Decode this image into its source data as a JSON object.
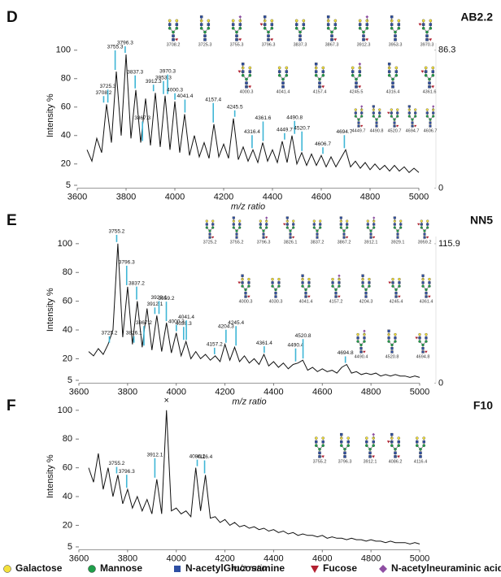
{
  "chart_data": [
    {
      "type": "line",
      "panel": "D",
      "sample": "AB2.2",
      "y_label": "Intensity %",
      "x_label": "m/z ratio",
      "color": "#111111",
      "peak_color": "#3fb6d6",
      "x": [
        3640,
        3660,
        3680,
        3700,
        3720,
        3740,
        3760,
        3780,
        3800,
        3820,
        3840,
        3860,
        3880,
        3900,
        3920,
        3940,
        3960,
        3980,
        4000,
        4020,
        4040,
        4060,
        4080,
        4100,
        4120,
        4140,
        4160,
        4180,
        4200,
        4220,
        4240,
        4260,
        4280,
        4300,
        4320,
        4340,
        4360,
        4380,
        4400,
        4420,
        4440,
        4460,
        4480,
        4500,
        4520,
        4540,
        4560,
        4580,
        4600,
        4620,
        4640,
        4660,
        4680,
        4700,
        4720,
        4740,
        4760,
        4780,
        4800,
        4820,
        4840,
        4860,
        4880,
        4900,
        4920,
        4940,
        4960,
        4980,
        5000
      ],
      "values": [
        30,
        22,
        38,
        28,
        62,
        35,
        85,
        40,
        97,
        38,
        72,
        35,
        66,
        33,
        70,
        32,
        68,
        30,
        64,
        28,
        55,
        26,
        40,
        25,
        35,
        24,
        48,
        25,
        34,
        24,
        52,
        23,
        32,
        22,
        30,
        21,
        35,
        22,
        30,
        21,
        36,
        21,
        40,
        20,
        28,
        19,
        27,
        19,
        26,
        18,
        25,
        18,
        24,
        30,
        18,
        22,
        17,
        21,
        16,
        20,
        16,
        19,
        15,
        19,
        15,
        18,
        14,
        17,
        14
      ],
      "xlim": [
        3600,
        5000
      ],
      "xticks": [
        3600,
        3800,
        4000,
        4200,
        4400,
        4600,
        4800,
        5000
      ],
      "ylim": [
        3,
        105
      ],
      "yticks": [
        5,
        20,
        40,
        60,
        80,
        100
      ],
      "y2lim": [
        0,
        90.7
      ],
      "y2ticks": [
        0,
        86.3
      ],
      "peaks": [
        3708.2,
        3725.3,
        3755.3,
        3796.3,
        3837.3,
        3867.3,
        3912.3,
        3953.3,
        3970.3,
        4000.3,
        4041.4,
        4157.4,
        4245.5,
        4316.4,
        4361.6,
        4449.7,
        4490.8,
        4520.7,
        4606.7,
        4694.7
      ],
      "glycans": [
        [
          "3708.2",
          "3725.3",
          "3755.3",
          "3796.3",
          "3837.3",
          "3867.3",
          "3912.3",
          "3953.3",
          "3970.3"
        ],
        [
          "4000.3",
          "4041.4",
          "4157.4",
          "4245.5",
          "4316.4",
          "4361.6"
        ],
        [
          "4449.7",
          "4490.8",
          "4520.7",
          "4694.7",
          "4606.7"
        ]
      ]
    },
    {
      "type": "line",
      "panel": "E",
      "sample": "NN5",
      "y_label": "Intensity %",
      "x_label": "m/z ratio",
      "color": "#111111",
      "peak_color": "#3fb6d6",
      "x": [
        3640,
        3660,
        3680,
        3700,
        3720,
        3740,
        3760,
        3780,
        3800,
        3820,
        3840,
        3860,
        3880,
        3900,
        3920,
        3940,
        3960,
        3980,
        4000,
        4020,
        4040,
        4060,
        4080,
        4100,
        4120,
        4140,
        4160,
        4180,
        4200,
        4220,
        4240,
        4260,
        4280,
        4300,
        4320,
        4340,
        4360,
        4380,
        4400,
        4420,
        4440,
        4460,
        4480,
        4500,
        4520,
        4540,
        4560,
        4580,
        4600,
        4620,
        4640,
        4660,
        4680,
        4700,
        4720,
        4740,
        4760,
        4780,
        4800,
        4820,
        4840,
        4860,
        4880,
        4900,
        4920,
        4940,
        4960,
        4980,
        5000
      ],
      "values": [
        25,
        22,
        27,
        23,
        30,
        40,
        100,
        35,
        70,
        30,
        60,
        28,
        55,
        26,
        50,
        25,
        45,
        24,
        38,
        22,
        32,
        20,
        25,
        20,
        23,
        19,
        22,
        18,
        30,
        19,
        28,
        18,
        22,
        17,
        20,
        16,
        23,
        15,
        18,
        14,
        17,
        13,
        16,
        17,
        19,
        12,
        14,
        11,
        13,
        11,
        12,
        10,
        14,
        16,
        10,
        11,
        9,
        10,
        9,
        10,
        8,
        9,
        8,
        9,
        8,
        8,
        7,
        8,
        7
      ],
      "xlim": [
        3600,
        5000
      ],
      "xticks": [
        3600,
        3800,
        4000,
        4200,
        4400,
        4600,
        4800,
        5000
      ],
      "ylim": [
        3,
        105
      ],
      "yticks": [
        5,
        20,
        40,
        60,
        80,
        100
      ],
      "y2lim": [
        0,
        121.9
      ],
      "y2ticks": [
        0,
        115.9
      ],
      "peaks": [
        3725.2,
        3755.2,
        3796.3,
        3826.1,
        3837.2,
        3867.2,
        3912.1,
        3929.1,
        3959.2,
        4000.3,
        4030.3,
        4041.4,
        4157.2,
        4204.3,
        4245.4,
        4361.4,
        4490.4,
        4520.8,
        4694.8
      ],
      "glycans": [
        [
          "3725.2",
          "3755.2",
          "3796.3",
          "3826.1",
          "3837.2",
          "3867.2",
          "3912.1",
          "3929.1",
          "3959.2"
        ],
        [
          "4000.3",
          "4030.3",
          "4041.4",
          "4157.2",
          "4204.3",
          "4245.4",
          "4361.4"
        ],
        [
          "4490.4",
          "4520.8",
          "4694.8"
        ]
      ]
    },
    {
      "type": "line",
      "panel": "F",
      "sample": "F10",
      "y_label": "Intensity %",
      "x_label": "m/z ratio",
      "color": "#111111",
      "peak_color": "#3fb6d6",
      "x": [
        3640,
        3660,
        3680,
        3700,
        3720,
        3740,
        3760,
        3780,
        3800,
        3820,
        3840,
        3860,
        3880,
        3900,
        3920,
        3940,
        3960,
        3980,
        4000,
        4020,
        4040,
        4060,
        4080,
        4100,
        4120,
        4140,
        4160,
        4180,
        4200,
        4220,
        4240,
        4260,
        4280,
        4300,
        4320,
        4340,
        4360,
        4380,
        4400,
        4420,
        4440,
        4460,
        4480,
        4500,
        4520,
        4540,
        4560,
        4580,
        4600,
        4620,
        4640,
        4660,
        4680,
        4700,
        4720,
        4740,
        4760,
        4780,
        4800,
        4820,
        4840,
        4860,
        4880,
        4900,
        4920,
        4940,
        4960,
        4980,
        5000
      ],
      "values": [
        60,
        50,
        70,
        45,
        60,
        40,
        55,
        35,
        45,
        32,
        40,
        30,
        38,
        28,
        52,
        28,
        100,
        30,
        32,
        28,
        30,
        26,
        60,
        30,
        55,
        25,
        26,
        22,
        24,
        20,
        22,
        19,
        20,
        18,
        19,
        17,
        18,
        16,
        17,
        15,
        16,
        14,
        15,
        13,
        14,
        13,
        13,
        12,
        13,
        11,
        12,
        11,
        11,
        10,
        11,
        10,
        10,
        9,
        10,
        9,
        9,
        8,
        9,
        8,
        8,
        8,
        7,
        8,
        7
      ],
      "xlim": [
        3600,
        5000
      ],
      "xticks": [
        3600,
        3800,
        4000,
        4200,
        4400,
        4600,
        4800,
        5000
      ],
      "ylim": [
        3,
        105
      ],
      "yticks": [
        5,
        20,
        40,
        60,
        80,
        100
      ],
      "peaks": [
        3755.2,
        3796.3,
        3912.1,
        4086.2,
        4116.4
      ],
      "marker": {
        "label": "×",
        "x": 3960
      },
      "glycans": [
        [
          "3755.2",
          "3796.3",
          "3912.1",
          "4086.2",
          "4116.4"
        ]
      ]
    }
  ],
  "legend": [
    {
      "label": "Galactose",
      "shape": "circle",
      "color": "#f3e03b"
    },
    {
      "label": "Mannose",
      "shape": "circle",
      "color": "#1f9e4a"
    },
    {
      "label": "N-acetylGlucosamine",
      "shape": "square",
      "color": "#2e4fa3"
    },
    {
      "label": "Fucose",
      "shape": "triangle",
      "color": "#b22030"
    },
    {
      "label": "N-acetylneuraminic acid",
      "shape": "diamond",
      "color": "#8e4ea2"
    }
  ]
}
